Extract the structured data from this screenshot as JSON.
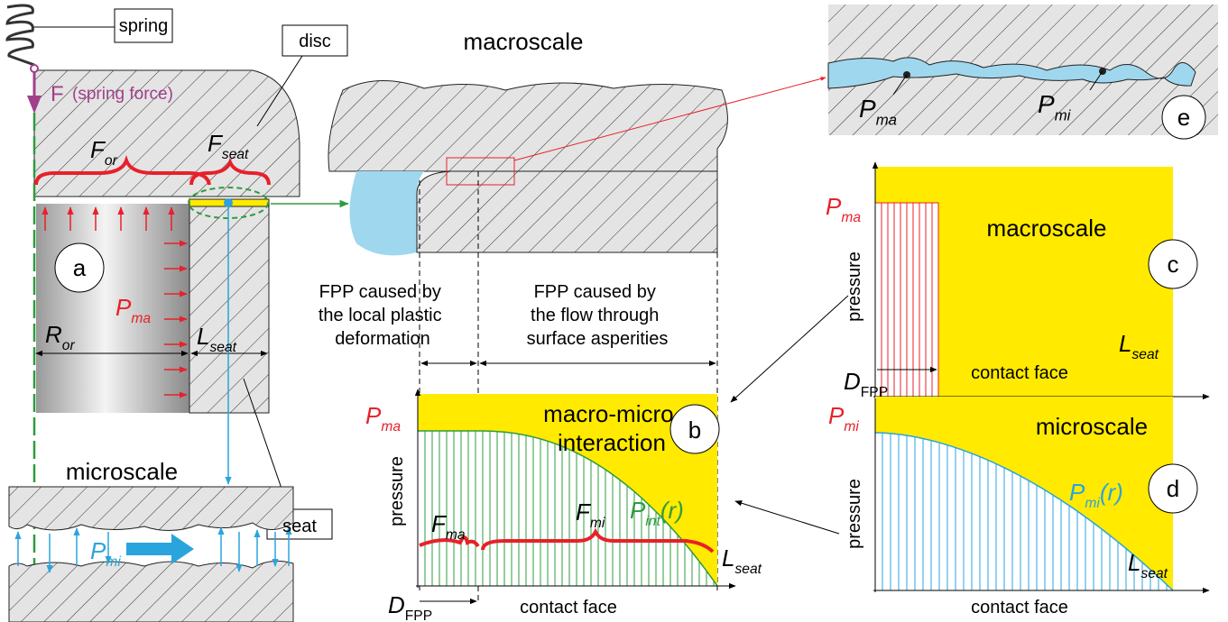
{
  "panel_a": {
    "spring": "spring",
    "disc": "disc",
    "force": {
      "main": "F",
      "note": "(spring force)"
    },
    "f_or": {
      "main": "F",
      "sub": "or"
    },
    "f_seat": {
      "main": "F",
      "sub": "seat"
    },
    "badge": "a",
    "p_ma": {
      "main": "P",
      "sub": "ma"
    },
    "r_or": {
      "main": "R",
      "sub": "or"
    },
    "l_seat": {
      "main": "L",
      "sub": "seat"
    },
    "seat": "seat"
  },
  "microscale": {
    "title": "microscale",
    "p_mi": {
      "main": "P",
      "sub": "mi"
    }
  },
  "macroscale": {
    "title": "macroscale",
    "fpp_left": [
      "FPP caused by",
      "the local plastic",
      "deformation"
    ],
    "fpp_right": [
      "FPP caused by",
      "the flow through",
      "surface asperities"
    ]
  },
  "panel_b": {
    "badge": "b",
    "title": [
      "macro-micro",
      "interaction"
    ],
    "p_ma": {
      "main": "P",
      "sub": "ma"
    },
    "y_label": "pressure",
    "f_ma": {
      "main": "F",
      "sub": "ma"
    },
    "f_mi": {
      "main": "F",
      "sub": "mi"
    },
    "p_int": {
      "main": "P",
      "sub": "int",
      "suffix": "(r)"
    },
    "l_seat": {
      "main": "L",
      "sub": "seat"
    },
    "d_fpp": {
      "main": "D",
      "sub": "FPP"
    },
    "x_label": "contact face"
  },
  "panel_c": {
    "badge": "c",
    "title": "macroscale",
    "p_ma": {
      "main": "P",
      "sub": "ma"
    },
    "y_label": "pressure",
    "l_seat": {
      "main": "L",
      "sub": "seat"
    },
    "d_fpp": {
      "main": "D",
      "sub": "FPP"
    },
    "x_label": "contact face"
  },
  "panel_d": {
    "badge": "d",
    "title": "microscale",
    "p_mi": {
      "main": "P",
      "sub": "mi"
    },
    "p_mi_r": {
      "main": "P",
      "sub": "mi",
      "suffix": "(r)"
    },
    "y_label": "pressure",
    "l_seat": {
      "main": "L",
      "sub": "seat"
    },
    "x_label": "contact face"
  },
  "panel_e": {
    "badge": "e",
    "p_ma": {
      "main": "P",
      "sub": "ma"
    },
    "p_mi": {
      "main": "P",
      "sub": "mi"
    }
  }
}
